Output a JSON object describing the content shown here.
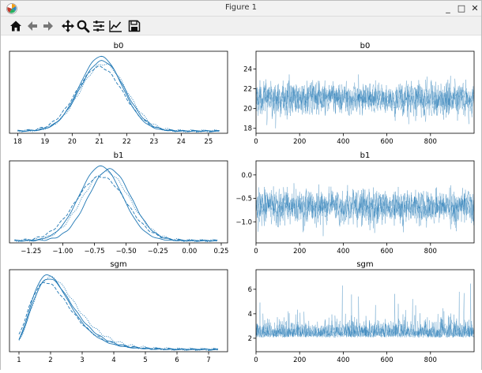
{
  "window": {
    "title": "Figure 1",
    "minimize_glyph": "_",
    "maximize_glyph": "□",
    "close_glyph": "✕"
  },
  "toolbar": {
    "buttons": [
      {
        "name": "home-icon",
        "label": "Home"
      },
      {
        "name": "back-icon",
        "label": "Back"
      },
      {
        "name": "forward-icon",
        "label": "Forward"
      },
      {
        "name": "pan-icon",
        "label": "Pan"
      },
      {
        "name": "zoom-icon",
        "label": "Zoom"
      },
      {
        "name": "subplots-icon",
        "label": "Configure subplots"
      },
      {
        "name": "customize-icon",
        "label": "Edit axis"
      },
      {
        "name": "save-icon",
        "label": "Save"
      }
    ]
  },
  "colors": {
    "series": "#1f77b4",
    "axes": "#000000"
  },
  "chart_data": [
    {
      "type": "line",
      "title": "b0",
      "kind": "density",
      "xlim": [
        17.7,
        25.7
      ],
      "ylim": [
        0,
        1.1
      ],
      "xticks": [
        "18",
        "19",
        "20",
        "21",
        "22",
        "23",
        "24",
        "25"
      ],
      "xtick_values": [
        18,
        19,
        20,
        21,
        22,
        23,
        24,
        25
      ],
      "yticks": [],
      "x_range": [
        18.0,
        25.4
      ],
      "series": [
        {
          "mean": 21.05,
          "sd": 0.78,
          "peak": 1.0,
          "dash": "solid"
        },
        {
          "mean": 21.1,
          "sd": 0.82,
          "peak": 0.94,
          "dash": "solid"
        },
        {
          "mean": 21.0,
          "sd": 0.86,
          "peak": 0.86,
          "dash": "dashed"
        },
        {
          "mean": 21.15,
          "sd": 0.85,
          "peak": 0.9,
          "dash": "dotted"
        }
      ]
    },
    {
      "type": "line",
      "title": "b0",
      "kind": "trace",
      "xlim": [
        0,
        1000
      ],
      "ylim": [
        17.5,
        25.8
      ],
      "xticks": [
        "0",
        "200",
        "400",
        "600",
        "800"
      ],
      "xtick_values": [
        0,
        200,
        400,
        600,
        800
      ],
      "yticks": [
        "18",
        "20",
        "22",
        "24"
      ],
      "ytick_values": [
        18,
        20,
        22,
        24
      ],
      "trace": {
        "mean": 21.0,
        "sd": 0.85,
        "min": 18.0,
        "max": 25.4
      }
    },
    {
      "type": "line",
      "title": "b1",
      "kind": "density",
      "xlim": [
        -1.42,
        0.3
      ],
      "ylim": [
        0,
        1.1
      ],
      "xticks": [
        "−1.25",
        "−1.00",
        "−0.75",
        "−0.50",
        "−0.25",
        "0.00",
        "0.25"
      ],
      "xtick_values": [
        -1.25,
        -1.0,
        -0.75,
        -0.5,
        -0.25,
        0.0,
        0.25
      ],
      "yticks": [],
      "x_range": [
        -1.38,
        0.22
      ],
      "series": [
        {
          "mean": -0.7,
          "sd": 0.17,
          "peak": 1.0,
          "dash": "solid"
        },
        {
          "mean": -0.63,
          "sd": 0.17,
          "peak": 0.96,
          "dash": "solid"
        },
        {
          "mean": -0.7,
          "sd": 0.2,
          "peak": 0.86,
          "dash": "dashed"
        },
        {
          "mean": -0.66,
          "sd": 0.19,
          "peak": 0.92,
          "dash": "dotted"
        }
      ]
    },
    {
      "type": "line",
      "title": "b1",
      "kind": "trace",
      "xlim": [
        0,
        1000
      ],
      "ylim": [
        -1.45,
        0.3
      ],
      "xticks": [
        "0",
        "200",
        "400",
        "600",
        "800"
      ],
      "xtick_values": [
        0,
        200,
        400,
        600,
        800
      ],
      "yticks": [
        "−1.0",
        "−0.5",
        "0.0"
      ],
      "ytick_values": [
        -1.0,
        -0.5,
        0.0
      ],
      "trace": {
        "mean": -0.68,
        "sd": 0.18,
        "min": -1.38,
        "max": 0.22
      }
    },
    {
      "type": "line",
      "title": "sgm",
      "kind": "density",
      "xlim": [
        0.7,
        7.6
      ],
      "ylim": [
        0,
        1.1
      ],
      "xticks": [
        "1",
        "2",
        "3",
        "4",
        "5",
        "6",
        "7"
      ],
      "xtick_values": [
        1,
        2,
        3,
        4,
        5,
        6,
        7
      ],
      "yticks": [],
      "x_range": [
        1.0,
        7.3
      ],
      "series": [
        {
          "mode": 1.9,
          "shape": 0.32,
          "peak": 1.0,
          "dash": "solid"
        },
        {
          "mode": 1.95,
          "shape": 0.33,
          "peak": 0.95,
          "dash": "solid"
        },
        {
          "mode": 1.85,
          "shape": 0.35,
          "peak": 0.9,
          "dash": "dashed"
        },
        {
          "mode": 2.0,
          "shape": 0.34,
          "peak": 0.97,
          "dash": "dotted"
        }
      ]
    },
    {
      "type": "line",
      "title": "sgm",
      "kind": "trace",
      "xlim": [
        0,
        1000
      ],
      "ylim": [
        0.9,
        7.6
      ],
      "xticks": [
        "0",
        "200",
        "400",
        "600",
        "800"
      ],
      "xtick_values": [
        0,
        200,
        400,
        600,
        800
      ],
      "yticks": [
        "2",
        "4",
        "6"
      ],
      "ytick_values": [
        2,
        4,
        6
      ],
      "trace": {
        "mean": 2.3,
        "sd": 0.6,
        "min": 1.0,
        "max": 7.3
      }
    }
  ]
}
